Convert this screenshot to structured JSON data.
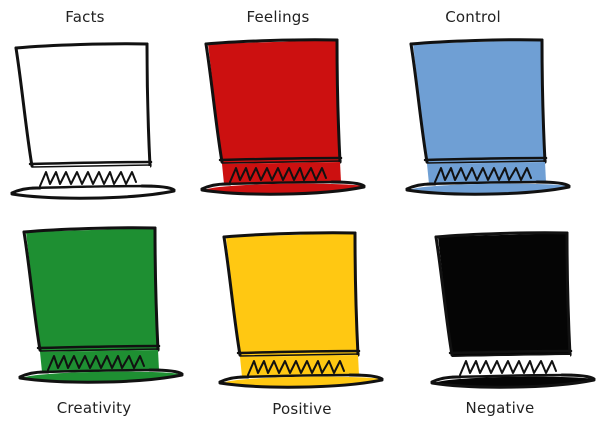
{
  "hats": [
    {
      "label": "Facts",
      "fill": "#ffffff"
    },
    {
      "label": "Feelings",
      "fill": "#cc1010"
    },
    {
      "label": "Control",
      "fill": "#6f9fd4"
    },
    {
      "label": "Creativity",
      "fill": "#1e8f32"
    },
    {
      "label": "Positive",
      "fill": "#ffc812"
    },
    {
      "label": "Negative",
      "fill": "#050505"
    }
  ]
}
